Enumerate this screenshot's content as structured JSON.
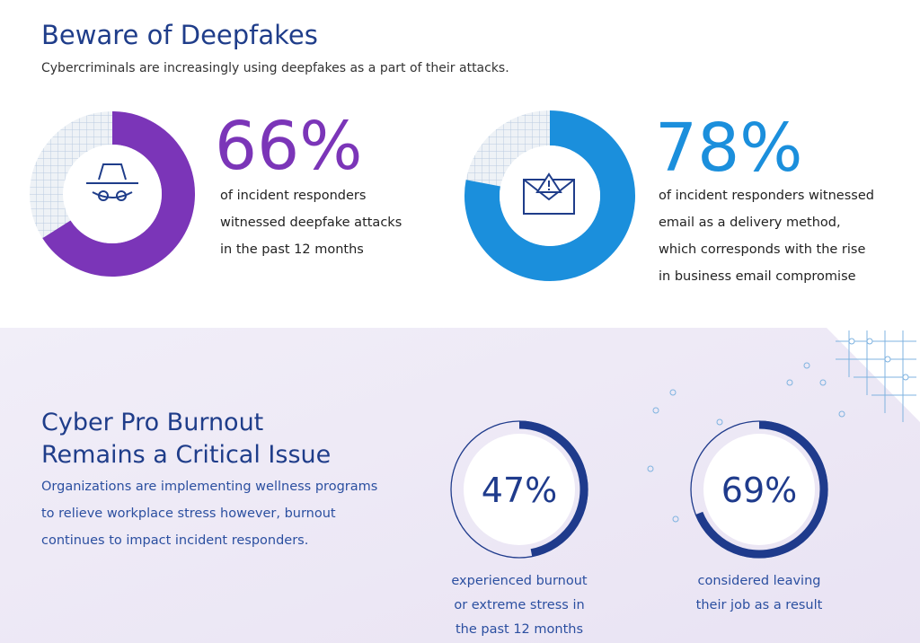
{
  "header": {
    "title": "Beware of Deepfakes",
    "subtitle": "Cybercriminals are increasingly using deepfakes as a part of their attacks."
  },
  "deepfakes": [
    {
      "stat": {
        "value": 66,
        "label": "66%"
      },
      "color": "#7b35b8",
      "lines": [
        "of incident responders",
        "witnessed deepfake attacks",
        "in the past 12 months"
      ]
    },
    {
      "stat": {
        "value": 78,
        "label": "78%"
      },
      "color": "#1b8fdc",
      "lines": [
        "of incident responders witnessed",
        "email as a delivery method,",
        "which corresponds with the rise",
        "in business email compromise"
      ]
    }
  ],
  "burnout": {
    "title_lines": [
      "Cyber Pro Burnout",
      "Remains a Critical Issue"
    ],
    "body_lines": [
      "Organizations are implementing wellness programs",
      "to relieve workplace stress however, burnout",
      "continues to impact incident responders."
    ],
    "color": "#1f3b8c",
    "stats": [
      {
        "stat": {
          "value": 47,
          "label": "47%"
        },
        "lines": [
          "experienced burnout",
          "or extreme stress in",
          "the past 12 months"
        ]
      },
      {
        "stat": {
          "value": 69,
          "label": "69%"
        },
        "lines": [
          "considered leaving",
          "their job as a result"
        ]
      }
    ]
  }
}
